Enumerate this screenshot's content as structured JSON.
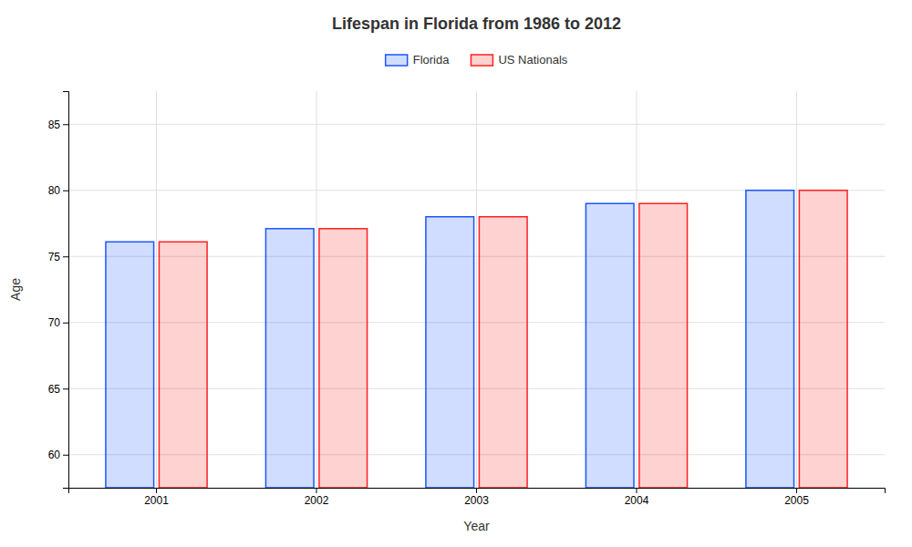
{
  "chart_data": {
    "type": "bar",
    "title": "Lifespan in Florida from 1986 to 2012",
    "xlabel": "Year",
    "ylabel": "Age",
    "categories": [
      "2001",
      "2002",
      "2003",
      "2004",
      "2005"
    ],
    "series": [
      {
        "name": "Florida",
        "color": "#1a56ff",
        "values": [
          76.1,
          77.1,
          78.0,
          79.0,
          80.0
        ]
      },
      {
        "name": "US Nationals",
        "color": "#ff2020",
        "values": [
          76.1,
          77.1,
          78.0,
          79.0,
          80.0
        ]
      }
    ],
    "ylim": [
      57.5,
      87.5
    ],
    "yticks": [
      60,
      65,
      70,
      75,
      80,
      85
    ],
    "grid": true,
    "legend": "top"
  }
}
